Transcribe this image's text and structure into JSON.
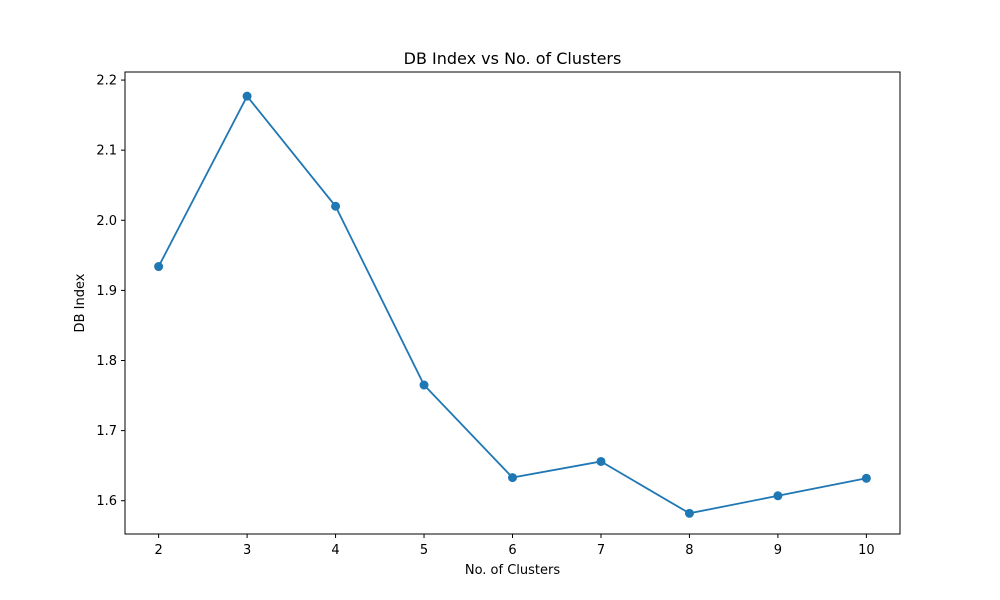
{
  "chart_data": {
    "type": "line",
    "title": "DB Index vs No. of Clusters",
    "xlabel": "No. of Clusters",
    "ylabel": "DB Index",
    "x": [
      2,
      3,
      4,
      5,
      6,
      7,
      8,
      9,
      10
    ],
    "series": [
      {
        "values": [
          1.934,
          2.177,
          2.02,
          1.765,
          1.633,
          1.656,
          1.582,
          1.607,
          1.632
        ],
        "color": "#1f77b4",
        "marker": "circle"
      }
    ],
    "xlim": [
      1.62,
      10.38
    ],
    "ylim": [
      1.5525,
      2.2115
    ],
    "xticks": [
      2,
      3,
      4,
      5,
      6,
      7,
      8,
      9,
      10
    ],
    "yticks": [
      1.6,
      1.7,
      1.8,
      1.9,
      2.0,
      2.1,
      2.2
    ],
    "ytick_labels": [
      "1.6",
      "1.7",
      "1.8",
      "1.9",
      "2.0",
      "2.1",
      "2.2"
    ],
    "grid": false,
    "legend": "none"
  }
}
